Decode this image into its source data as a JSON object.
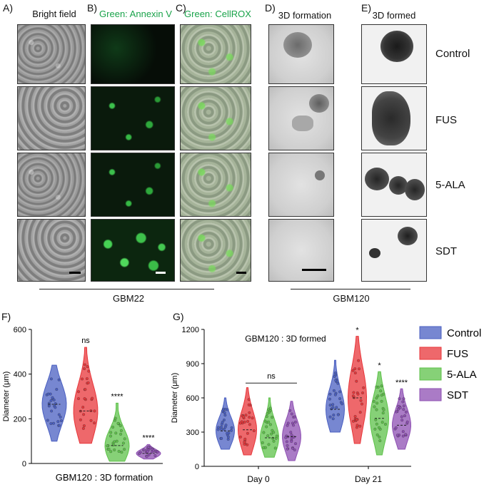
{
  "panels": {
    "A": {
      "letter": "A)",
      "title": "Bright field"
    },
    "B": {
      "letter": "B)",
      "title": "Green: Annexin V"
    },
    "C": {
      "letter": "C)",
      "title": "Green: CellROX"
    },
    "D": {
      "letter": "D)",
      "title": "3D formation"
    },
    "E": {
      "letter": "E)",
      "title": "3D formed"
    }
  },
  "row_labels": [
    "Control",
    "FUS",
    "5-ALA",
    "SDT"
  ],
  "group_labels": {
    "left": "GBM22",
    "right": "GBM120"
  },
  "colors": {
    "control": "#4a5fc1",
    "fus": "#e8363a",
    "ala": "#5ec24a",
    "sdt": "#8e4fb3",
    "green_text": "#19a34a"
  },
  "chart_data": [
    {
      "panel": "F)",
      "type": "violin",
      "title": "",
      "xlabel": "GBM120 : 3D formation",
      "ylabel": "Diameter (μm)",
      "ylim": [
        0,
        600
      ],
      "yticks": [
        0,
        200,
        400,
        600
      ],
      "series": [
        {
          "name": "Control",
          "median": 265,
          "min": 100,
          "max": 440,
          "significance": ""
        },
        {
          "name": "FUS",
          "median": 235,
          "min": 90,
          "max": 520,
          "significance": "ns"
        },
        {
          "name": "5-ALA",
          "median": 80,
          "min": 10,
          "max": 270,
          "significance": "****"
        },
        {
          "name": "SDT",
          "median": 45,
          "min": 20,
          "max": 85,
          "significance": "****"
        }
      ]
    },
    {
      "panel": "G)",
      "type": "violin",
      "title": "GBM120 : 3D formed",
      "xlabel": "",
      "ylabel": "Diameter (μm)",
      "categories": [
        "Day 0",
        "Day 21"
      ],
      "ylim": [
        0,
        1200
      ],
      "yticks": [
        0,
        300,
        600,
        900,
        1200
      ],
      "legend": [
        "Control",
        "FUS",
        "5-ALA",
        "SDT"
      ],
      "bracket_label": "ns",
      "series": [
        {
          "name": "Control",
          "day0": {
            "median": 310,
            "min": 150,
            "max": 600
          },
          "day21": {
            "median": 500,
            "min": 300,
            "max": 930
          },
          "significance_day21": ""
        },
        {
          "name": "FUS",
          "day0": {
            "median": 320,
            "min": 100,
            "max": 690
          },
          "day21": {
            "median": 600,
            "min": 200,
            "max": 1140
          },
          "significance_day21": "*"
        },
        {
          "name": "5-ALA",
          "day0": {
            "median": 250,
            "min": 80,
            "max": 600
          },
          "day21": {
            "median": 420,
            "min": 100,
            "max": 830
          },
          "significance_day21": "*"
        },
        {
          "name": "SDT",
          "day0": {
            "median": 260,
            "min": 50,
            "max": 570
          },
          "day21": {
            "median": 360,
            "min": 150,
            "max": 680
          },
          "significance_day21": "****"
        }
      ]
    }
  ]
}
